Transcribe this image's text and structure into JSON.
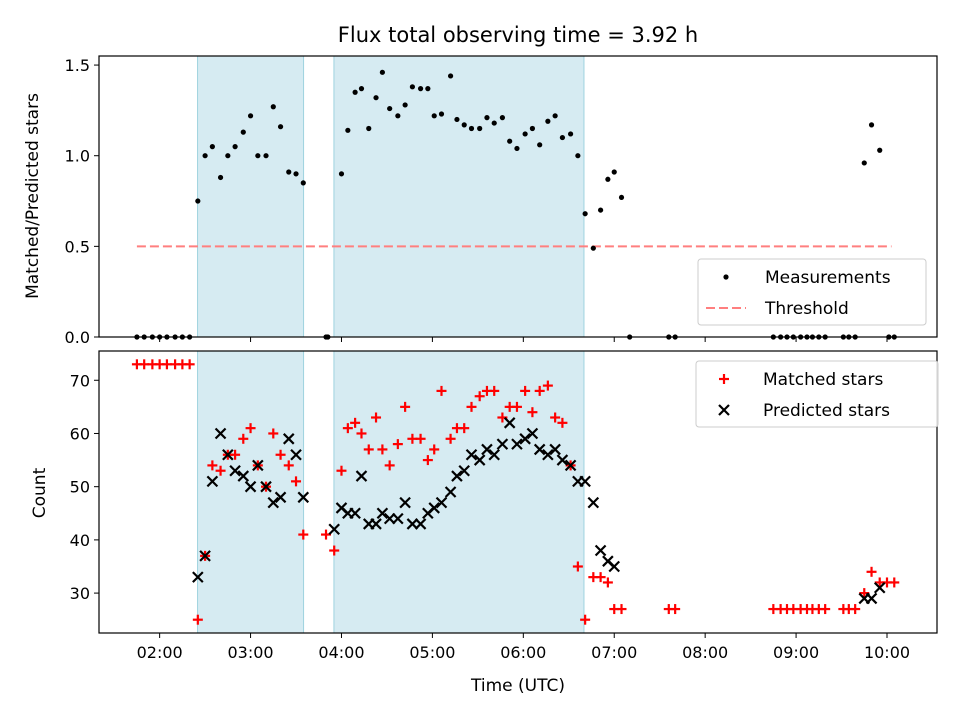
{
  "title": "Flux total observing time = 3.92 h",
  "chart_data": [
    {
      "type": "scatter",
      "ylabel": "Matched/Predicted stars",
      "xlabel": "",
      "xlim": [
        1.333,
        10.55
      ],
      "ylim": [
        0,
        1.55
      ],
      "yticks": [
        0.0,
        0.5,
        1.0,
        1.5
      ],
      "ytick_labels": [
        "0.0",
        "0.5",
        "1.0",
        "1.5"
      ],
      "legend_position": "lower-right",
      "legend": [
        {
          "label": "Measurements",
          "marker": "dot",
          "color": "#000000"
        },
        {
          "label": "Threshold",
          "marker": "dashed-line",
          "color": "#ff7f7f"
        }
      ],
      "shaded_intervals": [
        [
          2.417,
          3.583
        ],
        [
          3.917,
          6.667
        ]
      ],
      "shade_color": "#add8e6",
      "threshold": {
        "y": 0.5,
        "x_range": [
          1.75,
          10.05
        ]
      },
      "measurements": [
        [
          1.75,
          0
        ],
        [
          1.83,
          0
        ],
        [
          1.92,
          0
        ],
        [
          2.0,
          0
        ],
        [
          2.08,
          0
        ],
        [
          2.17,
          0
        ],
        [
          2.25,
          0
        ],
        [
          2.33,
          0
        ],
        [
          2.42,
          0.75
        ],
        [
          2.5,
          1.0
        ],
        [
          2.58,
          1.05
        ],
        [
          2.67,
          0.88
        ],
        [
          2.75,
          1.0
        ],
        [
          2.83,
          1.05
        ],
        [
          2.92,
          1.13
        ],
        [
          3.0,
          1.22
        ],
        [
          3.08,
          1.0
        ],
        [
          3.17,
          1.0
        ],
        [
          3.25,
          1.27
        ],
        [
          3.33,
          1.16
        ],
        [
          3.42,
          0.91
        ],
        [
          3.5,
          0.9
        ],
        [
          3.58,
          0.85
        ],
        [
          3.83,
          0
        ],
        [
          3.85,
          0
        ],
        [
          4.0,
          0.9
        ],
        [
          4.07,
          1.14
        ],
        [
          4.15,
          1.35
        ],
        [
          4.22,
          1.37
        ],
        [
          4.3,
          1.15
        ],
        [
          4.38,
          1.32
        ],
        [
          4.45,
          1.46
        ],
        [
          4.53,
          1.26
        ],
        [
          4.62,
          1.22
        ],
        [
          4.7,
          1.28
        ],
        [
          4.78,
          1.38
        ],
        [
          4.87,
          1.37
        ],
        [
          4.95,
          1.37
        ],
        [
          5.02,
          1.22
        ],
        [
          5.1,
          1.23
        ],
        [
          5.2,
          1.44
        ],
        [
          5.27,
          1.2
        ],
        [
          5.35,
          1.17
        ],
        [
          5.43,
          1.15
        ],
        [
          5.52,
          1.15
        ],
        [
          5.6,
          1.21
        ],
        [
          5.68,
          1.18
        ],
        [
          5.77,
          1.21
        ],
        [
          5.85,
          1.08
        ],
        [
          5.93,
          1.04
        ],
        [
          6.02,
          1.12
        ],
        [
          6.1,
          1.15
        ],
        [
          6.18,
          1.06
        ],
        [
          6.27,
          1.19
        ],
        [
          6.35,
          1.22
        ],
        [
          6.43,
          1.1
        ],
        [
          6.52,
          1.12
        ],
        [
          6.6,
          1.0
        ],
        [
          6.68,
          0.68
        ],
        [
          6.77,
          0.49
        ],
        [
          6.85,
          0.7
        ],
        [
          6.93,
          0.87
        ],
        [
          7.0,
          0.91
        ],
        [
          7.08,
          0.77
        ],
        [
          7.17,
          0
        ],
        [
          7.6,
          0
        ],
        [
          7.67,
          0
        ],
        [
          8.75,
          0
        ],
        [
          8.83,
          0
        ],
        [
          8.9,
          0
        ],
        [
          8.97,
          0
        ],
        [
          9.05,
          0
        ],
        [
          9.12,
          0
        ],
        [
          9.18,
          0
        ],
        [
          9.25,
          0
        ],
        [
          9.32,
          0
        ],
        [
          9.52,
          0
        ],
        [
          9.58,
          0
        ],
        [
          9.65,
          0
        ],
        [
          9.75,
          0.96
        ],
        [
          9.83,
          1.17
        ],
        [
          9.92,
          1.03
        ],
        [
          10.02,
          0
        ],
        [
          10.08,
          0
        ]
      ]
    },
    {
      "type": "scatter",
      "ylabel": "Count",
      "xlabel": "Time (UTC)",
      "xlim": [
        1.333,
        10.55
      ],
      "ylim": [
        22.5,
        75.5
      ],
      "yticks": [
        30,
        40,
        50,
        60,
        70
      ],
      "ytick_labels": [
        "30",
        "40",
        "50",
        "60",
        "70"
      ],
      "xticks": [
        2,
        3,
        4,
        5,
        6,
        7,
        8,
        9,
        10
      ],
      "xtick_labels": [
        "02:00",
        "03:00",
        "04:00",
        "05:00",
        "06:00",
        "07:00",
        "08:00",
        "09:00",
        "10:00"
      ],
      "legend_position": "upper-right",
      "legend": [
        {
          "label": "Matched stars",
          "marker": "plus",
          "color": "#ff0000"
        },
        {
          "label": "Predicted stars",
          "marker": "x",
          "color": "#000000"
        }
      ],
      "shaded_intervals": [
        [
          2.417,
          3.583
        ],
        [
          3.917,
          6.667
        ]
      ],
      "shade_color": "#add8e6",
      "matched": [
        [
          1.75,
          73
        ],
        [
          1.83,
          73
        ],
        [
          1.92,
          73
        ],
        [
          2.0,
          73
        ],
        [
          2.08,
          73
        ],
        [
          2.17,
          73
        ],
        [
          2.25,
          73
        ],
        [
          2.33,
          73
        ],
        [
          2.42,
          25
        ],
        [
          2.5,
          37
        ],
        [
          2.58,
          54
        ],
        [
          2.67,
          53
        ],
        [
          2.75,
          56
        ],
        [
          2.83,
          56
        ],
        [
          2.92,
          59
        ],
        [
          3.0,
          61
        ],
        [
          3.08,
          54
        ],
        [
          3.17,
          50
        ],
        [
          3.25,
          60
        ],
        [
          3.33,
          56
        ],
        [
          3.42,
          54
        ],
        [
          3.5,
          51
        ],
        [
          3.58,
          41
        ],
        [
          3.83,
          41
        ],
        [
          3.92,
          38
        ],
        [
          4.0,
          53
        ],
        [
          4.07,
          61
        ],
        [
          4.15,
          62
        ],
        [
          4.22,
          60
        ],
        [
          4.3,
          57
        ],
        [
          4.38,
          63
        ],
        [
          4.45,
          57
        ],
        [
          4.53,
          54
        ],
        [
          4.62,
          58
        ],
        [
          4.7,
          65
        ],
        [
          4.78,
          59
        ],
        [
          4.87,
          59
        ],
        [
          4.95,
          55
        ],
        [
          5.02,
          57
        ],
        [
          5.1,
          68
        ],
        [
          5.2,
          59
        ],
        [
          5.27,
          61
        ],
        [
          5.35,
          61
        ],
        [
          5.43,
          65
        ],
        [
          5.52,
          67
        ],
        [
          5.6,
          68
        ],
        [
          5.68,
          68
        ],
        [
          5.77,
          63
        ],
        [
          5.85,
          65
        ],
        [
          5.93,
          65
        ],
        [
          6.02,
          68
        ],
        [
          6.1,
          64
        ],
        [
          6.18,
          68
        ],
        [
          6.27,
          69
        ],
        [
          6.35,
          63
        ],
        [
          6.43,
          62
        ],
        [
          6.52,
          54
        ],
        [
          6.6,
          35
        ],
        [
          6.68,
          25
        ],
        [
          6.77,
          33
        ],
        [
          6.85,
          33
        ],
        [
          6.93,
          32
        ],
        [
          7.0,
          27
        ],
        [
          7.08,
          27
        ],
        [
          7.6,
          27
        ],
        [
          7.67,
          27
        ],
        [
          8.75,
          27
        ],
        [
          8.83,
          27
        ],
        [
          8.9,
          27
        ],
        [
          8.97,
          27
        ],
        [
          9.05,
          27
        ],
        [
          9.12,
          27
        ],
        [
          9.18,
          27
        ],
        [
          9.25,
          27
        ],
        [
          9.32,
          27
        ],
        [
          9.52,
          27
        ],
        [
          9.58,
          27
        ],
        [
          9.65,
          27
        ],
        [
          9.75,
          30
        ],
        [
          9.83,
          34
        ],
        [
          9.92,
          32
        ],
        [
          10.0,
          32
        ],
        [
          10.08,
          32
        ]
      ],
      "predicted": [
        [
          2.42,
          33
        ],
        [
          2.5,
          37
        ],
        [
          2.58,
          51
        ],
        [
          2.67,
          60
        ],
        [
          2.75,
          56
        ],
        [
          2.83,
          53
        ],
        [
          2.92,
          52
        ],
        [
          3.0,
          50
        ],
        [
          3.08,
          54
        ],
        [
          3.17,
          50
        ],
        [
          3.25,
          47
        ],
        [
          3.33,
          48
        ],
        [
          3.42,
          59
        ],
        [
          3.5,
          56
        ],
        [
          3.58,
          48
        ],
        [
          3.92,
          42
        ],
        [
          4.0,
          46
        ],
        [
          4.07,
          45
        ],
        [
          4.15,
          45
        ],
        [
          4.22,
          52
        ],
        [
          4.3,
          43
        ],
        [
          4.38,
          43
        ],
        [
          4.45,
          45
        ],
        [
          4.53,
          44
        ],
        [
          4.62,
          44
        ],
        [
          4.7,
          47
        ],
        [
          4.78,
          43
        ],
        [
          4.87,
          43
        ],
        [
          4.95,
          45
        ],
        [
          5.02,
          46
        ],
        [
          5.1,
          47
        ],
        [
          5.2,
          49
        ],
        [
          5.27,
          52
        ],
        [
          5.35,
          53
        ],
        [
          5.43,
          56
        ],
        [
          5.52,
          55
        ],
        [
          5.6,
          57
        ],
        [
          5.68,
          56
        ],
        [
          5.77,
          58
        ],
        [
          5.85,
          62
        ],
        [
          5.93,
          58
        ],
        [
          6.02,
          59
        ],
        [
          6.1,
          60
        ],
        [
          6.18,
          57
        ],
        [
          6.27,
          56
        ],
        [
          6.35,
          57
        ],
        [
          6.43,
          55
        ],
        [
          6.52,
          54
        ],
        [
          6.6,
          51
        ],
        [
          6.68,
          51
        ],
        [
          6.77,
          47
        ],
        [
          6.85,
          38
        ],
        [
          6.93,
          36
        ],
        [
          7.0,
          35
        ],
        [
          9.75,
          29
        ],
        [
          9.83,
          29
        ],
        [
          9.92,
          31
        ]
      ]
    }
  ]
}
